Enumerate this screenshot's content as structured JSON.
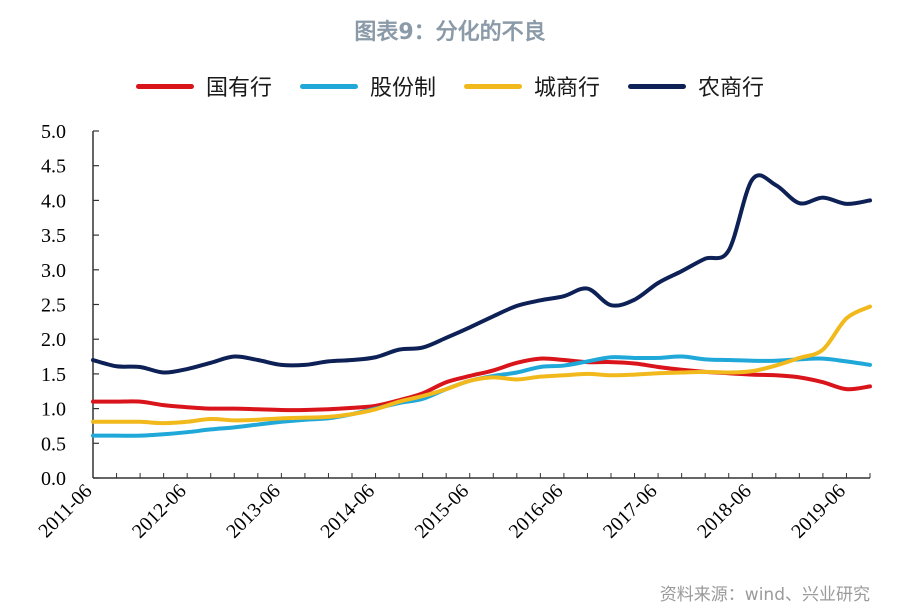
{
  "chart_data": {
    "type": "line",
    "title": "图表9：分化的不良",
    "source": "资料来源：wind、兴业研究",
    "ylim": [
      0,
      5
    ],
    "yticks": [
      "5.0",
      "4.5",
      "4.0",
      "3.5",
      "3.0",
      "2.5",
      "2.0",
      "1.5",
      "1.0",
      "0.5",
      "0.0"
    ],
    "xticks": [
      "2011-06",
      "2012-06",
      "2013-06",
      "2014-06",
      "2015-06",
      "2016-06",
      "2017-06",
      "2018-06",
      "2019-06"
    ],
    "legend_position": "top-center",
    "grid": false,
    "x": [
      "2011-06",
      "2011-09",
      "2011-12",
      "2012-03",
      "2012-06",
      "2012-09",
      "2012-12",
      "2013-03",
      "2013-06",
      "2013-09",
      "2013-12",
      "2014-03",
      "2014-06",
      "2014-09",
      "2014-12",
      "2015-03",
      "2015-06",
      "2015-09",
      "2015-12",
      "2016-03",
      "2016-06",
      "2016-09",
      "2016-12",
      "2017-03",
      "2017-06",
      "2017-09",
      "2017-12",
      "2018-03",
      "2018-06",
      "2018-09",
      "2018-12",
      "2019-03",
      "2019-06",
      "2019-09"
    ],
    "series": [
      {
        "name": "国有行",
        "color": "#d9141b",
        "values": [
          1.1,
          1.1,
          1.1,
          1.05,
          1.02,
          1.0,
          1.0,
          0.99,
          0.98,
          0.98,
          0.99,
          1.01,
          1.04,
          1.12,
          1.22,
          1.38,
          1.47,
          1.55,
          1.66,
          1.72,
          1.7,
          1.67,
          1.67,
          1.65,
          1.6,
          1.56,
          1.53,
          1.51,
          1.49,
          1.48,
          1.45,
          1.38,
          1.28,
          1.32
        ]
      },
      {
        "name": "股份制",
        "color": "#1fa8d8",
        "values": [
          0.61,
          0.61,
          0.61,
          0.63,
          0.66,
          0.7,
          0.73,
          0.77,
          0.81,
          0.84,
          0.86,
          0.92,
          1.0,
          1.08,
          1.14,
          1.28,
          1.4,
          1.47,
          1.52,
          1.6,
          1.62,
          1.68,
          1.74,
          1.73,
          1.73,
          1.75,
          1.71,
          1.7,
          1.69,
          1.69,
          1.71,
          1.72,
          1.68,
          1.63
        ]
      },
      {
        "name": "城商行",
        "color": "#f2b91c",
        "values": [
          0.81,
          0.81,
          0.81,
          0.79,
          0.81,
          0.85,
          0.83,
          0.84,
          0.86,
          0.87,
          0.88,
          0.92,
          0.99,
          1.1,
          1.18,
          1.28,
          1.4,
          1.45,
          1.42,
          1.46,
          1.48,
          1.5,
          1.48,
          1.49,
          1.51,
          1.52,
          1.53,
          1.52,
          1.54,
          1.62,
          1.73,
          1.85,
          2.3,
          2.47
        ]
      },
      {
        "name": "农商行",
        "color": "#0d2157",
        "values": [
          1.7,
          1.61,
          1.6,
          1.52,
          1.57,
          1.66,
          1.75,
          1.7,
          1.63,
          1.63,
          1.68,
          1.7,
          1.74,
          1.85,
          1.88,
          2.02,
          2.17,
          2.33,
          2.48,
          2.56,
          2.62,
          2.73,
          2.49,
          2.57,
          2.81,
          2.98,
          3.16,
          3.28,
          4.3,
          4.22,
          3.96,
          4.04,
          3.95,
          4.0
        ]
      }
    ]
  }
}
